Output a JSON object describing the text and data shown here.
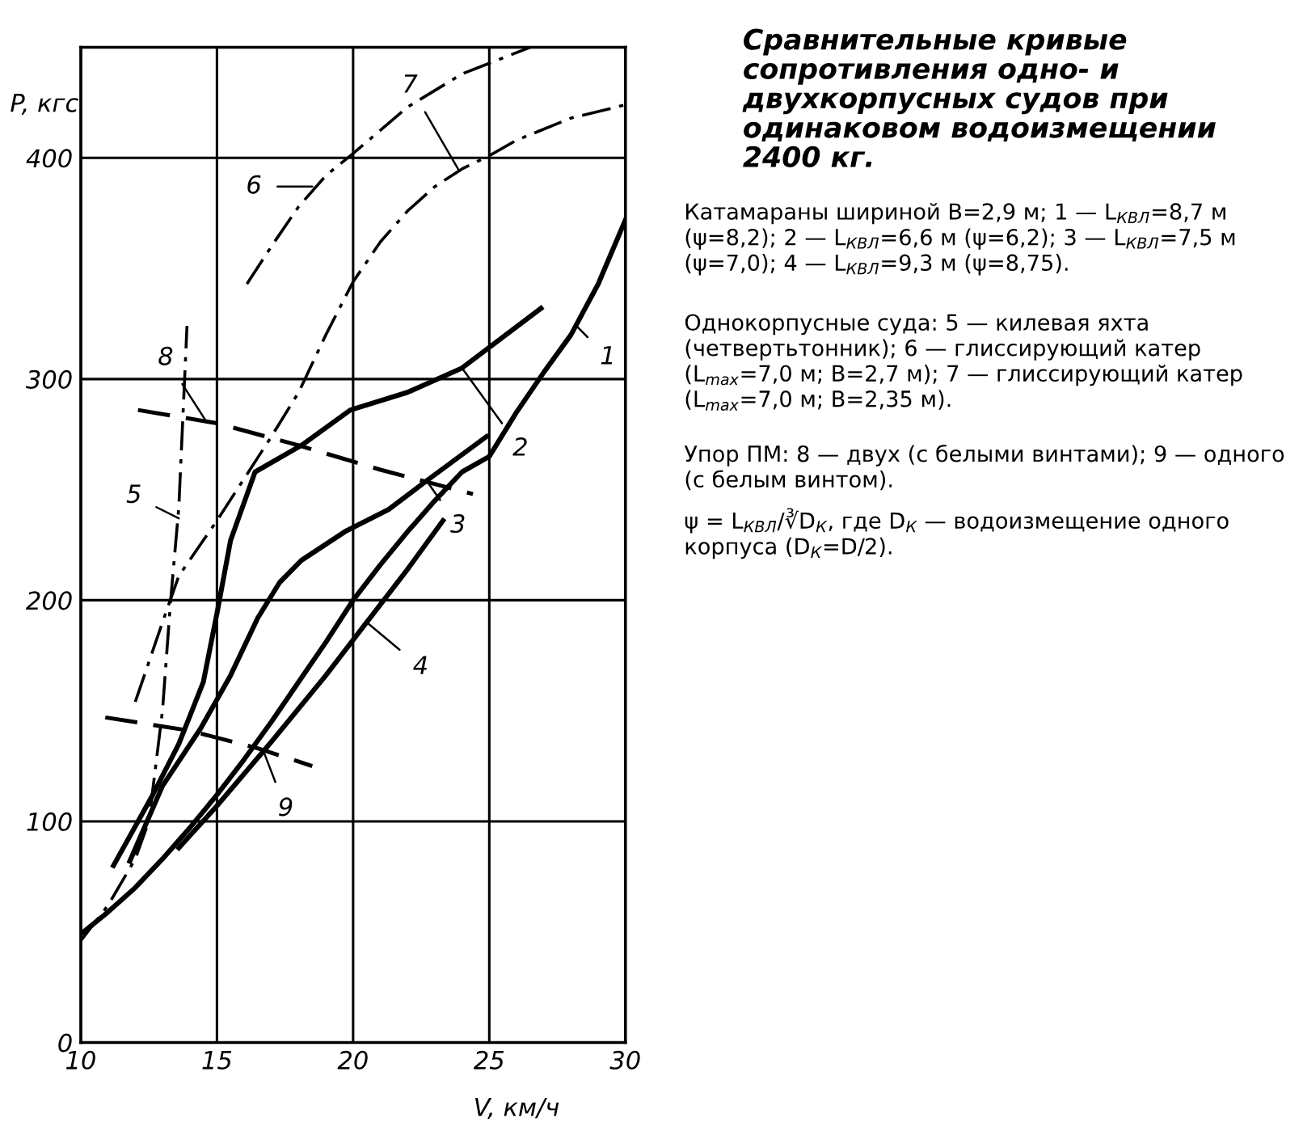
{
  "chart_data": {
    "type": "line",
    "title": "Сравнительные кривые сопротивления одно- и двухкорпусных судов при одинаковом водоизмещении 2400 кг.",
    "xlabel": "V, км/ч",
    "ylabel": "P, кгс",
    "xlim": [
      10,
      30
    ],
    "ylim": [
      0,
      450
    ],
    "xticks": [
      10,
      15,
      20,
      25,
      30
    ],
    "yticks": [
      0,
      100,
      200,
      300,
      400
    ],
    "grid": true,
    "marker": "none",
    "series": [
      {
        "color": "#000000",
        "line_style": "solid",
        "x": [
          10,
          11,
          12,
          13,
          14,
          15,
          16,
          17,
          18,
          19,
          20,
          21,
          22,
          23,
          24,
          25,
          26,
          27,
          28,
          29,
          30
        ],
        "values": [
          49,
          59,
          70,
          83,
          97,
          112,
          128,
          145,
          163,
          181,
          200,
          216,
          231,
          245,
          258,
          265,
          285,
          303,
          320,
          343,
          372
        ]
      },
      {
        "color": "#000000",
        "line_style": "solid",
        "x": [
          11.2,
          12.6,
          13.6,
          14.5,
          15.0,
          15.5,
          16.4,
          18.1,
          19.9,
          22,
          24.0,
          26.9
        ],
        "values": [
          80,
          111,
          135,
          163,
          194,
          227,
          258,
          270,
          286,
          294,
          305,
          332
        ]
      },
      {
        "color": "#000000",
        "line_style": "solid",
        "x": [
          11.8,
          13.0,
          14.4,
          15.5,
          16.5,
          17.3,
          18.1,
          19.7,
          21.3,
          22.7,
          24.9
        ],
        "values": [
          82,
          116,
          142,
          166,
          192,
          208,
          218,
          231,
          241,
          254,
          274
        ]
      },
      {
        "color": "#000000",
        "line_style": "solid",
        "x": [
          13.6,
          15,
          17,
          19,
          20.5,
          22,
          23.3
        ],
        "values": [
          88,
          107,
          136,
          166,
          190,
          214,
          236
        ]
      },
      {
        "color": "#000000",
        "line_style": "dashdot",
        "x": [
          10,
          11,
          12,
          12.5,
          13,
          13.3,
          13.6,
          13.9
        ],
        "values": [
          46,
          62,
          83,
          100,
          150,
          200,
          242,
          324
        ]
      },
      {
        "color": "#000000",
        "line_style": "dashdot",
        "x": [
          16.1,
          17,
          18,
          19,
          20,
          22,
          24,
          26.5
        ],
        "values": [
          343,
          360,
          378,
          392,
          402,
          423,
          438,
          450
        ]
      },
      {
        "color": "#000000",
        "line_style": "dashdot",
        "x": [
          12,
          13,
          13.6,
          15,
          16,
          17,
          18,
          19,
          20,
          21,
          22,
          23,
          24,
          25,
          26,
          28,
          30
        ],
        "values": [
          154,
          190,
          211,
          236,
          255,
          274,
          294,
          320,
          344,
          362,
          376,
          387,
          395,
          401,
          408,
          418,
          424
        ]
      },
      {
        "color": "#000000",
        "line_style": "dashed",
        "x": [
          12.1,
          15,
          18,
          21,
          24.4
        ],
        "values": [
          286,
          280,
          270,
          259,
          248
        ]
      },
      {
        "color": "#000000",
        "line_style": "dashed",
        "x": [
          10.9,
          14,
          16.5,
          18.5
        ],
        "values": [
          147,
          141,
          133,
          125
        ]
      }
    ],
    "annotations": [
      {
        "text": "1",
        "x": 28.2,
        "y": 324
      },
      {
        "text": "2",
        "x": 24.0,
        "y": 305
      },
      {
        "text": "3",
        "x": 22.7,
        "y": 254
      },
      {
        "text": "4",
        "x": 20.5,
        "y": 190
      },
      {
        "text": "5",
        "x": 13.6,
        "y": 237
      },
      {
        "text": "6",
        "x": 18.5,
        "y": 387
      },
      {
        "text": "7",
        "x": 23.9,
        "y": 394
      },
      {
        "text": "8",
        "x": 14.6,
        "y": 281
      },
      {
        "text": "9",
        "x": 16.7,
        "y": 132
      },
      "Катамараны шириной B=2,9 м; 1 — L$_{КВЛ}$=8,7 м (ψ=8,2); 2 — L$_{КВЛ}$=6,6 м (ψ=6,2); 3 — L$_{КВЛ}$=7,5 м (ψ=7,0); 4 — L$_{КВЛ}$=9,3 м (ψ=8,75).",
      "Однокорпусные суда: 5 — килевая яхта (четвертьтонник); 6 — глиссирующий катер (L$_{max}$=7,0 м; B=2,7 м); 7 — глиссирующий катер (L$_{max}$=7,0 м; B=2,35 м).",
      "Упор ПМ: 8 — двух (с белыми винтами); 9 — одного (с белым винтом).",
      "ψ = L$_{КВЛ}$/∛D$_{К}$, где D$_{К}$ — водоизмещение одного корпуса (D$_{К}$=D/2)."
    ]
  }
}
